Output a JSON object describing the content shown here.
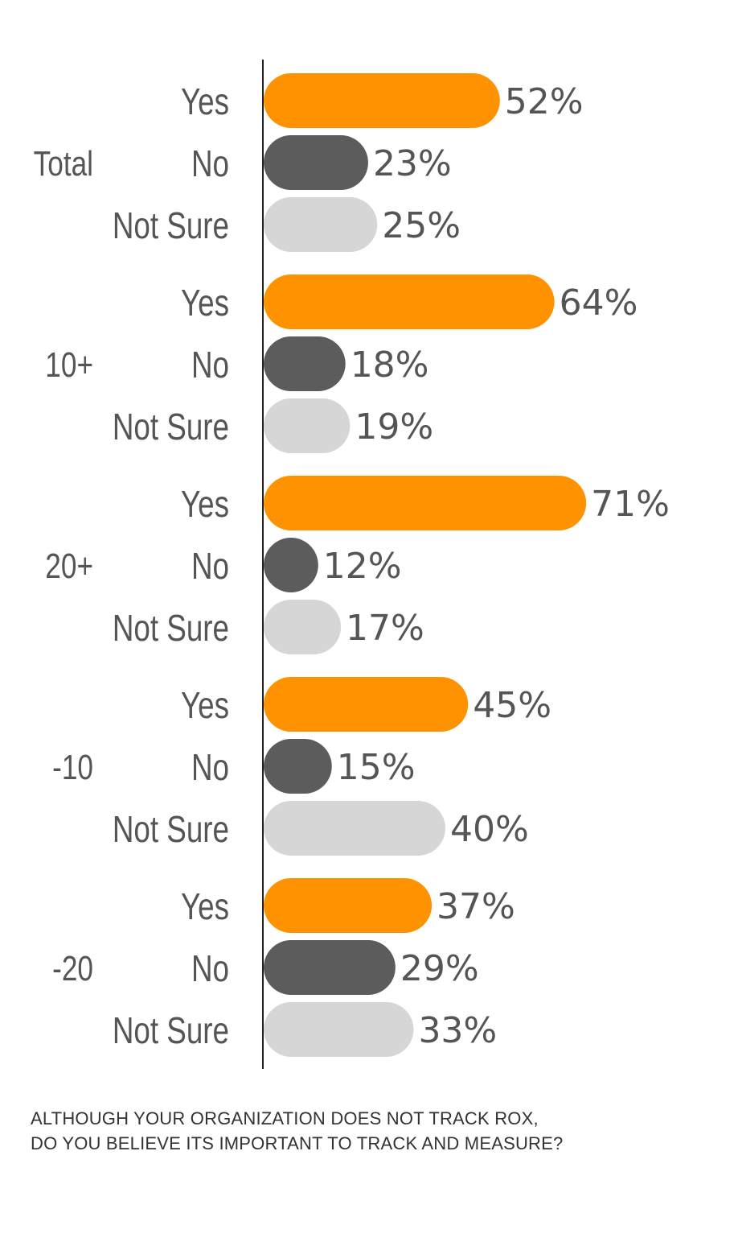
{
  "chart_data": {
    "type": "bar",
    "orientation": "horizontal",
    "categories": [
      "Yes",
      "No",
      "Not Sure"
    ],
    "groups": [
      {
        "label": "Total",
        "values": [
          52,
          23,
          25
        ]
      },
      {
        "label": "10+",
        "values": [
          64,
          18,
          19
        ]
      },
      {
        "label": "20+",
        "values": [
          71,
          12,
          17
        ]
      },
      {
        "label": "-10",
        "values": [
          45,
          15,
          40
        ]
      },
      {
        "label": "-20",
        "values": [
          37,
          29,
          33
        ]
      }
    ],
    "value_suffix": "%",
    "colors": {
      "Yes": "#FF9200",
      "No": "#5C5C5C",
      "Not Sure": "#D6D6D6"
    },
    "xlim": [
      0,
      100
    ],
    "grid": false,
    "legend": "none"
  },
  "caption": {
    "line1": "ALTHOUGH YOUR ORGANIZATION DOES NOT TRACK ROX,",
    "line2": "DO YOU BELIEVE ITS IMPORTANT TO TRACK AND MEASURE?"
  }
}
